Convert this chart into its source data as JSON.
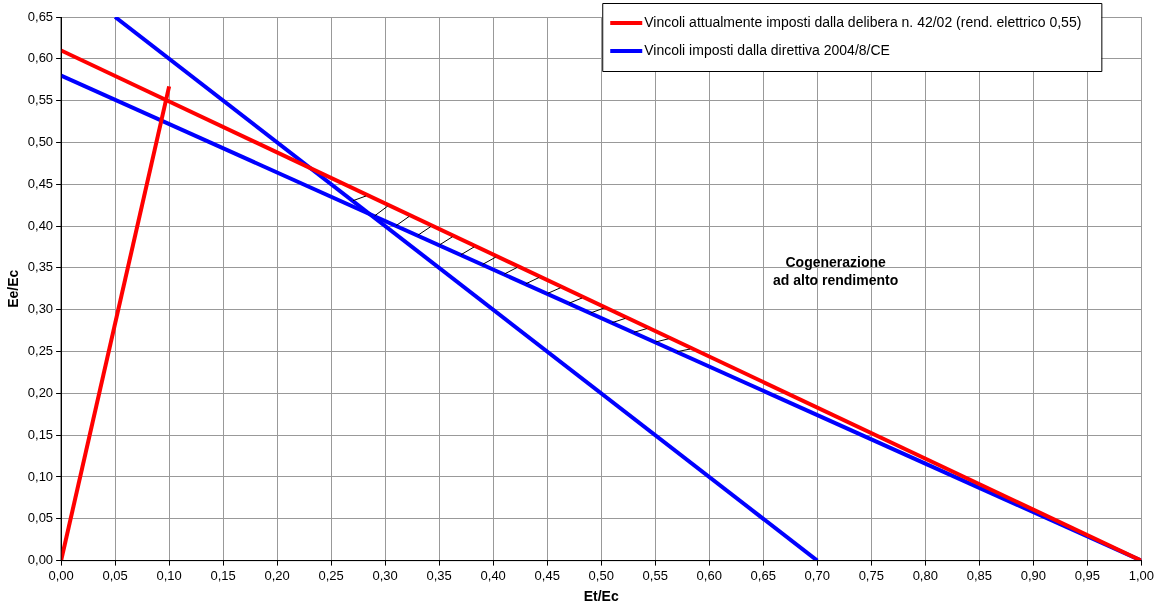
{
  "chart_data": {
    "type": "line",
    "xlabel": "Et/Ec",
    "ylabel": "Ee/Ec",
    "xlim": [
      0,
      1
    ],
    "ylim": [
      0,
      0.65
    ],
    "xticks": [
      {
        "value": 0,
        "label": "0,00"
      },
      {
        "value": 0.05,
        "label": "0,05"
      },
      {
        "value": 0.1,
        "label": "0,10"
      },
      {
        "value": 0.15,
        "label": "0,15"
      },
      {
        "value": 0.2,
        "label": "0,20"
      },
      {
        "value": 0.25,
        "label": "0,25"
      },
      {
        "value": 0.3,
        "label": "0,30"
      },
      {
        "value": 0.35,
        "label": "0,35"
      },
      {
        "value": 0.4,
        "label": "0,40"
      },
      {
        "value": 0.45,
        "label": "0,45"
      },
      {
        "value": 0.5,
        "label": "0,50"
      },
      {
        "value": 0.55,
        "label": "0,55"
      },
      {
        "value": 0.6,
        "label": "0,60"
      },
      {
        "value": 0.65,
        "label": "0,65"
      },
      {
        "value": 0.7,
        "label": "0,70"
      },
      {
        "value": 0.75,
        "label": "0,75"
      },
      {
        "value": 0.8,
        "label": "0,80"
      },
      {
        "value": 0.85,
        "label": "0,85"
      },
      {
        "value": 0.9,
        "label": "0,90"
      },
      {
        "value": 0.95,
        "label": "0,95"
      },
      {
        "value": 1,
        "label": "1,00"
      }
    ],
    "yticks": [
      {
        "value": 0,
        "label": "0,00"
      },
      {
        "value": 0.05,
        "label": "0,05"
      },
      {
        "value": 0.1,
        "label": "0,10"
      },
      {
        "value": 0.15,
        "label": "0,15"
      },
      {
        "value": 0.2,
        "label": "0,20"
      },
      {
        "value": 0.25,
        "label": "0,25"
      },
      {
        "value": 0.3,
        "label": "0,30"
      },
      {
        "value": 0.35,
        "label": "0,35"
      },
      {
        "value": 0.4,
        "label": "0,40"
      },
      {
        "value": 0.45,
        "label": "0,45"
      },
      {
        "value": 0.5,
        "label": "0,50"
      },
      {
        "value": 0.55,
        "label": "0,55"
      },
      {
        "value": 0.6,
        "label": "0,60"
      },
      {
        "value": 0.65,
        "label": "0,65"
      }
    ],
    "series": [
      {
        "name": "Vincoli attualmente imposti dalla delibera n. 42/02 (rend. elettrico 0,55)",
        "color": "#ff0000",
        "x": [
          0,
          1
        ],
        "values": [
          0.61,
          0
        ]
      },
      {
        "color": "#ff0000",
        "x": [
          0,
          0.1
        ],
        "values": [
          0,
          0.567
        ]
      },
      {
        "name": "Vincoli imposti dalla direttiva 2004/8/CE",
        "color": "#0000ff",
        "x": [
          0,
          1
        ],
        "values": [
          0.58,
          0
        ]
      },
      {
        "color": "#0000ff",
        "x": [
          0.05,
          0.7
        ],
        "values": [
          0.65,
          0
        ]
      }
    ],
    "annotations": [
      "Cogenerazione\nad alto rendimento"
    ],
    "grid": true,
    "legend": "top right",
    "marker": "none",
    "line_style": "solid"
  }
}
